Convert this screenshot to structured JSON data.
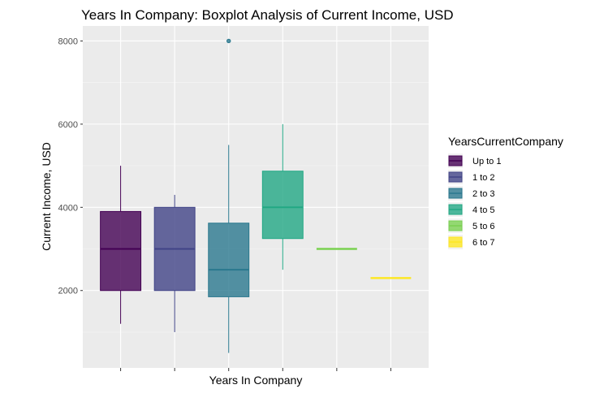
{
  "chart_data": {
    "type": "boxplot",
    "title": "Years In Company: Boxplot Analysis of Current Income, USD",
    "xlabel": "Years In Company",
    "ylabel": "Current Income, USD",
    "ylim": [
      140,
      8360
    ],
    "yticks": [
      2000,
      4000,
      6000,
      8000
    ],
    "ytick_labels": [
      "2000",
      "4000",
      "6000",
      "8000"
    ],
    "legend": {
      "title": "YearsCurrentCompany",
      "position": "right"
    },
    "series": [
      {
        "name": "Up to 1",
        "color": "#440154",
        "min": 1200,
        "q1": 2000,
        "median": 3000,
        "q3": 3900,
        "max": 5000,
        "outliers": []
      },
      {
        "name": "1 to 2",
        "color": "#414487",
        "min": 1000,
        "q1": 2000,
        "median": 3000,
        "q3": 4000,
        "max": 4300,
        "outliers": []
      },
      {
        "name": "2 to 3",
        "color": "#2a788e",
        "min": 500,
        "q1": 1850,
        "median": 2500,
        "q3": 3620,
        "max": 5500,
        "outliers": [
          8000
        ]
      },
      {
        "name": "4 to 5",
        "color": "#22a884",
        "min": 2500,
        "q1": 3250,
        "median": 4000,
        "q3": 4870,
        "max": 6000,
        "outliers": []
      },
      {
        "name": "5 to 6",
        "color": "#7ad151",
        "min": 3000,
        "q1": 3000,
        "median": 3000,
        "q3": 3000,
        "max": 3000,
        "outliers": []
      },
      {
        "name": "6 to 7",
        "color": "#fde725",
        "min": 2300,
        "q1": 2300,
        "median": 2300,
        "q3": 2300,
        "max": 2300,
        "outliers": []
      }
    ]
  }
}
